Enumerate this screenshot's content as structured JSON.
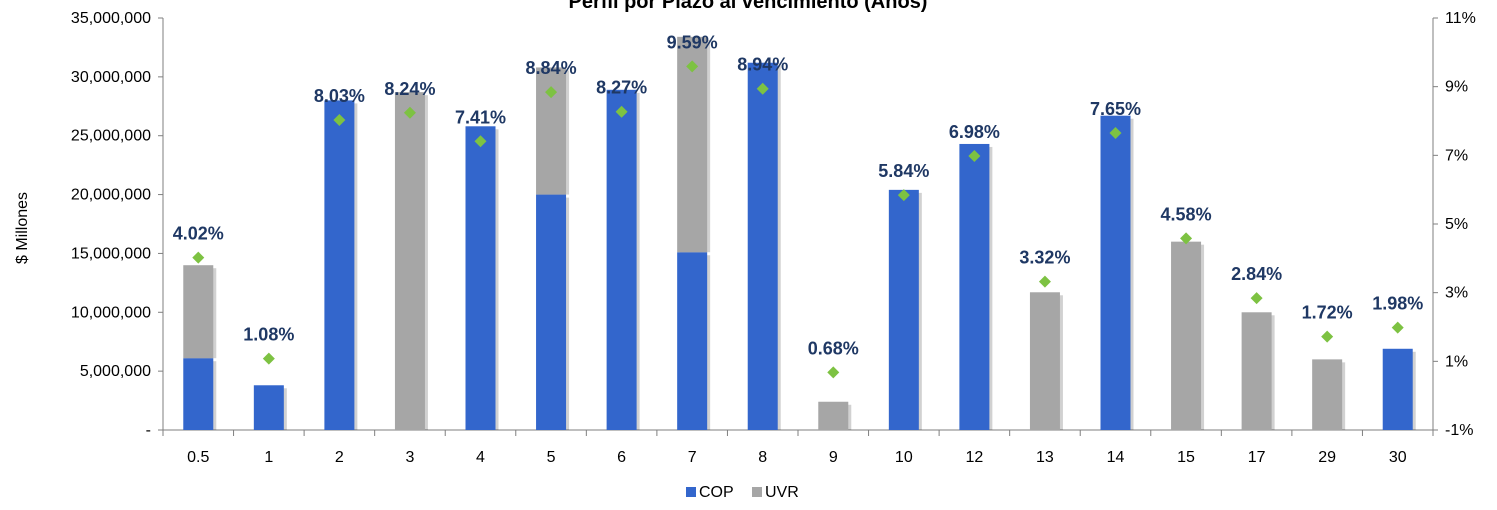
{
  "chart_data": {
    "type": "bar",
    "title": "Perfil por Plazo al vencimiento (Años)",
    "ylabel": "$ Millones",
    "categories": [
      "0.5",
      "1",
      "2",
      "3",
      "4",
      "5",
      "6",
      "7",
      "8",
      "9",
      "10",
      "12",
      "13",
      "14",
      "15",
      "17",
      "29",
      "30"
    ],
    "series": [
      {
        "name": "COP",
        "color": "#3366cc",
        "values": [
          6100000,
          3800000,
          28000000,
          0,
          25800000,
          20000000,
          28900000,
          15100000,
          31200000,
          0,
          20400000,
          24300000,
          0,
          26700000,
          0,
          0,
          0,
          6900000
        ]
      },
      {
        "name": "UVR",
        "color": "#a6a6a6",
        "values": [
          7900000,
          0,
          0,
          28700000,
          0,
          10800000,
          0,
          18300000,
          0,
          2400000,
          0,
          0,
          11700000,
          0,
          16000000,
          10000000,
          6000000,
          0
        ]
      }
    ],
    "rate_series": {
      "marker_color": "#7dc242",
      "values": [
        4.02,
        1.08,
        8.03,
        8.24,
        7.41,
        8.84,
        8.27,
        9.59,
        8.94,
        0.68,
        5.84,
        6.98,
        3.32,
        7.65,
        4.58,
        2.84,
        1.72,
        1.98
      ],
      "labels": [
        "4.02%",
        "1.08%",
        "8.03%",
        "8.24%",
        "7.41%",
        "8.84%",
        "8.27%",
        "9.59%",
        "8.94%",
        "0.68%",
        "5.84%",
        "6.98%",
        "3.32%",
        "7.65%",
        "4.58%",
        "2.84%",
        "1.72%",
        "1.98%"
      ]
    },
    "y_left": {
      "min": 0,
      "max": 35000000,
      "ticks": [
        "-",
        "5,000,000",
        "10,000,000",
        "15,000,000",
        "20,000,000",
        "25,000,000",
        "30,000,000",
        "35,000,000"
      ]
    },
    "y_right": {
      "min": -1,
      "max": 11,
      "ticks": [
        "-1%",
        "1%",
        "3%",
        "5%",
        "7%",
        "9%",
        "11%"
      ]
    },
    "legend": [
      {
        "name": "COP",
        "color": "#3366cc"
      },
      {
        "name": "UVR",
        "color": "#a6a6a6"
      }
    ],
    "legend_position": "bottom",
    "grid": false
  }
}
